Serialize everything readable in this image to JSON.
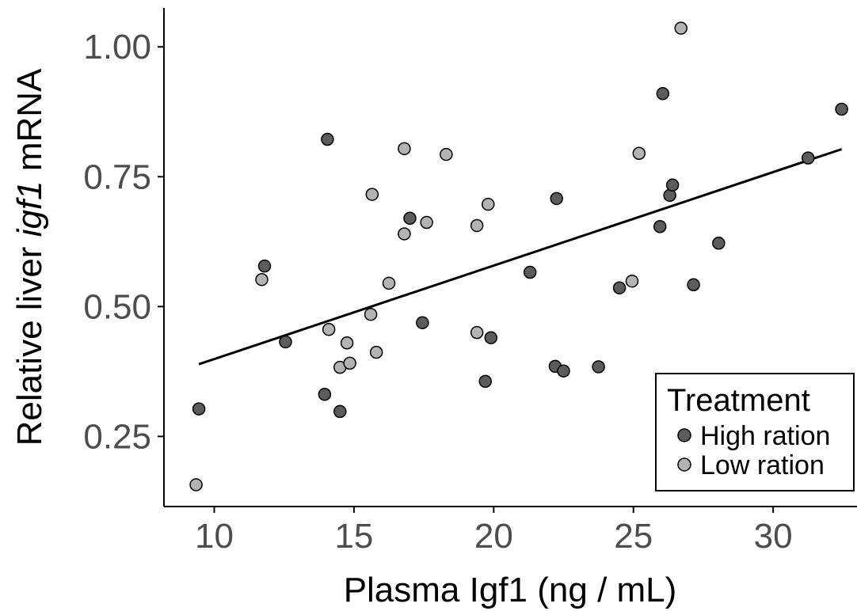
{
  "chart_data": {
    "type": "scatter",
    "xlabel": "Plasma Igf1 (ng / mL)",
    "ylabel_parts": [
      "Relative liver ",
      "igf1",
      " mRNA"
    ],
    "xlim": [
      8.2,
      33
    ],
    "ylim": [
      0.115,
      1.075
    ],
    "xticks": [
      10,
      15,
      20,
      25,
      30
    ],
    "xtick_labels": [
      "10",
      "15",
      "20",
      "25",
      "30"
    ],
    "yticks": [
      0.25,
      0.5,
      0.75,
      1.0
    ],
    "ytick_labels": [
      "0.25",
      "0.50",
      "0.75",
      "1.00"
    ],
    "grid": false,
    "legend": {
      "title": "Treatment",
      "position": "bottom-right",
      "entries": [
        "High ration",
        "Low ration"
      ]
    },
    "colors": {
      "High ration": "#5c5c5c",
      "Low ration": "#b3b3b3"
    },
    "series": [
      {
        "name": "High ration",
        "points": [
          [
            9.45,
            0.303
          ],
          [
            11.8,
            0.578
          ],
          [
            12.55,
            0.432
          ],
          [
            13.95,
            0.331
          ],
          [
            14.05,
            0.822
          ],
          [
            14.5,
            0.298
          ],
          [
            17.0,
            0.67
          ],
          [
            17.45,
            0.469
          ],
          [
            19.7,
            0.356
          ],
          [
            19.9,
            0.44
          ],
          [
            21.3,
            0.566
          ],
          [
            22.2,
            0.385
          ],
          [
            22.25,
            0.708
          ],
          [
            22.5,
            0.376
          ],
          [
            23.75,
            0.384
          ],
          [
            24.5,
            0.536
          ],
          [
            25.95,
            0.654
          ],
          [
            26.05,
            0.91
          ],
          [
            26.3,
            0.714
          ],
          [
            26.4,
            0.734
          ],
          [
            27.15,
            0.542
          ],
          [
            28.05,
            0.622
          ],
          [
            31.25,
            0.786
          ],
          [
            32.45,
            0.88
          ]
        ]
      },
      {
        "name": "Low ration",
        "points": [
          [
            9.35,
            0.157
          ],
          [
            11.7,
            0.552
          ],
          [
            14.1,
            0.456
          ],
          [
            14.5,
            0.383
          ],
          [
            14.75,
            0.43
          ],
          [
            14.85,
            0.391
          ],
          [
            15.6,
            0.485
          ],
          [
            15.65,
            0.716
          ],
          [
            15.8,
            0.412
          ],
          [
            16.25,
            0.545
          ],
          [
            16.8,
            0.804
          ],
          [
            16.8,
            0.64
          ],
          [
            17.6,
            0.662
          ],
          [
            18.3,
            0.793
          ],
          [
            19.4,
            0.656
          ],
          [
            19.4,
            0.45
          ],
          [
            19.8,
            0.697
          ],
          [
            24.95,
            0.549
          ],
          [
            25.2,
            0.795
          ],
          [
            26.7,
            1.036
          ]
        ]
      }
    ],
    "trendline": {
      "x": [
        9.45,
        32.45
      ],
      "y": [
        0.389,
        0.803
      ]
    }
  }
}
